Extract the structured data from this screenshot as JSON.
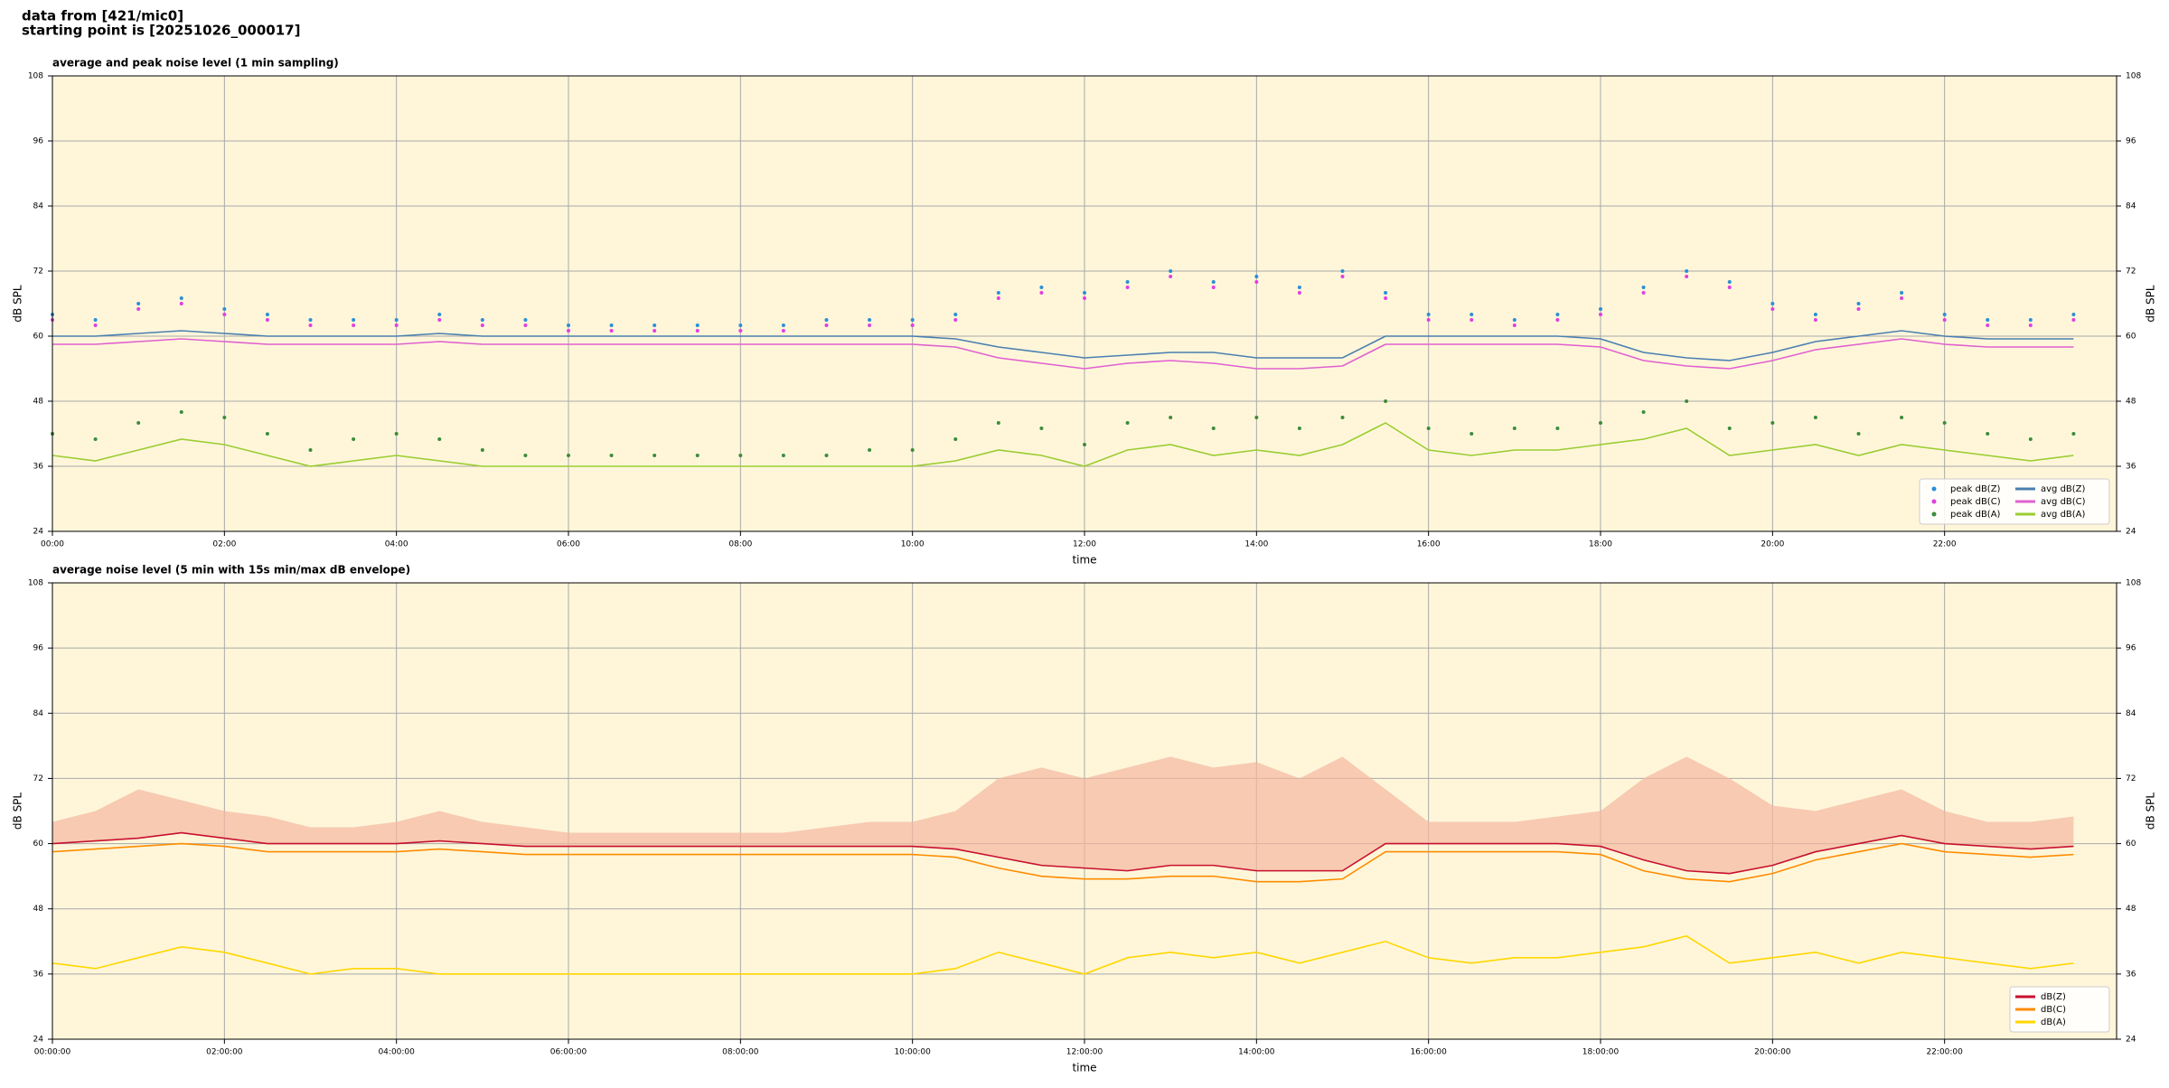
{
  "header": {
    "title": "data from [421/mic0]",
    "subtitle": "starting point is [20251026_000017]"
  },
  "chart_data": [
    {
      "type": "line",
      "title": "average and peak noise level (1 min sampling)",
      "x_label": "time",
      "y_label": "dB SPL",
      "xlim": [
        0,
        24
      ],
      "ylim": [
        24,
        108
      ],
      "yticks": [
        24,
        36,
        48,
        60,
        72,
        84,
        96,
        108
      ],
      "xticks": [
        {
          "value": 0,
          "label": "00:00"
        },
        {
          "value": 2,
          "label": "02:00"
        },
        {
          "value": 4,
          "label": "04:00"
        },
        {
          "value": 6,
          "label": "06:00"
        },
        {
          "value": 8,
          "label": "08:00"
        },
        {
          "value": 10,
          "label": "10:00"
        },
        {
          "value": 12,
          "label": "12:00"
        },
        {
          "value": 14,
          "label": "14:00"
        },
        {
          "value": 16,
          "label": "16:00"
        },
        {
          "value": 18,
          "label": "18:00"
        },
        {
          "value": 20,
          "label": "20:00"
        },
        {
          "value": 22,
          "label": "22:00"
        }
      ],
      "grid": true,
      "legend": "lower right",
      "legend_columns": 2,
      "x": [
        0,
        0.5,
        1,
        1.5,
        2,
        2.5,
        3,
        3.5,
        4,
        4.5,
        5,
        5.5,
        6,
        6.5,
        7,
        7.5,
        8,
        8.5,
        9,
        9.5,
        10,
        10.5,
        11,
        11.5,
        12,
        12.5,
        13,
        13.5,
        14,
        14.5,
        15,
        15.5,
        16,
        16.5,
        17,
        17.5,
        18,
        18.5,
        19,
        19.5,
        20,
        20.5,
        21,
        21.5,
        22,
        22.5,
        23,
        23.5
      ],
      "series": [
        {
          "name": "peak dB(Z)",
          "kind": "scatter",
          "color": "#2a8fd6",
          "values": [
            64,
            63,
            66,
            67,
            65,
            64,
            63,
            63,
            63,
            64,
            63,
            63,
            62,
            62,
            62,
            62,
            62,
            62,
            63,
            63,
            63,
            64,
            68,
            69,
            68,
            70,
            72,
            70,
            71,
            69,
            72,
            68,
            64,
            64,
            63,
            64,
            65,
            69,
            72,
            70,
            66,
            64,
            66,
            68,
            64,
            63,
            63,
            64
          ]
        },
        {
          "name": "peak dB(C)",
          "kind": "scatter",
          "color": "#e23ee2",
          "values": [
            63,
            62,
            65,
            66,
            64,
            63,
            62,
            62,
            62,
            63,
            62,
            62,
            61,
            61,
            61,
            61,
            61,
            61,
            62,
            62,
            62,
            63,
            67,
            68,
            67,
            69,
            71,
            69,
            70,
            68,
            71,
            67,
            63,
            63,
            62,
            63,
            64,
            68,
            71,
            69,
            65,
            63,
            65,
            67,
            63,
            62,
            62,
            63
          ]
        },
        {
          "name": "peak dB(A)",
          "kind": "scatter",
          "color": "#3c8c3c",
          "values": [
            42,
            41,
            44,
            46,
            45,
            42,
            39,
            41,
            42,
            41,
            39,
            38,
            38,
            38,
            38,
            38,
            38,
            38,
            38,
            39,
            39,
            41,
            44,
            43,
            40,
            44,
            45,
            43,
            45,
            43,
            45,
            48,
            43,
            42,
            43,
            43,
            44,
            46,
            48,
            43,
            44,
            45,
            42,
            45,
            44,
            42,
            41,
            42
          ]
        },
        {
          "name": "avg dB(Z)",
          "kind": "line",
          "color": "#4a7fb0",
          "values": [
            60,
            60,
            60.5,
            61,
            60.5,
            60,
            60,
            60,
            60,
            60.5,
            60,
            60,
            60,
            60,
            60,
            60,
            60,
            60,
            60,
            60,
            60,
            59.5,
            58,
            57,
            56,
            56.5,
            57,
            57,
            56,
            56,
            56,
            60,
            60,
            60,
            60,
            60,
            59.5,
            57,
            56,
            55.5,
            57,
            59,
            60,
            61,
            60,
            59.5,
            59.5,
            59.5
          ]
        },
        {
          "name": "avg dB(C)",
          "kind": "line",
          "color": "#e060d0",
          "values": [
            58.5,
            58.5,
            59,
            59.5,
            59,
            58.5,
            58.5,
            58.5,
            58.5,
            59,
            58.5,
            58.5,
            58.5,
            58.5,
            58.5,
            58.5,
            58.5,
            58.5,
            58.5,
            58.5,
            58.5,
            58,
            56,
            55,
            54,
            55,
            55.5,
            55,
            54,
            54,
            54.5,
            58.5,
            58.5,
            58.5,
            58.5,
            58.5,
            58,
            55.5,
            54.5,
            54,
            55.5,
            57.5,
            58.5,
            59.5,
            58.5,
            58,
            58,
            58
          ]
        },
        {
          "name": "avg dB(A)",
          "kind": "line",
          "color": "#9acd32",
          "values": [
            38,
            37,
            39,
            41,
            40,
            38,
            36,
            37,
            38,
            37,
            36,
            36,
            36,
            36,
            36,
            36,
            36,
            36,
            36,
            36,
            36,
            37,
            39,
            38,
            36,
            39,
            40,
            38,
            39,
            38,
            40,
            44,
            39,
            38,
            39,
            39,
            40,
            41,
            43,
            38,
            39,
            40,
            38,
            40,
            39,
            38,
            37,
            38
          ]
        }
      ]
    },
    {
      "type": "line",
      "title": "average noise level (5 min with 15s min/max dB envelope)",
      "x_label": "time",
      "y_label": "dB SPL",
      "xlim": [
        0,
        24
      ],
      "ylim": [
        24,
        108
      ],
      "yticks": [
        24,
        36,
        48,
        60,
        72,
        84,
        96,
        108
      ],
      "xticks": [
        {
          "value": 0,
          "label": "00:00:00"
        },
        {
          "value": 2,
          "label": "02:00:00"
        },
        {
          "value": 4,
          "label": "04:00:00"
        },
        {
          "value": 6,
          "label": "06:00:00"
        },
        {
          "value": 8,
          "label": "08:00:00"
        },
        {
          "value": 10,
          "label": "10:00:00"
        },
        {
          "value": 12,
          "label": "12:00:00"
        },
        {
          "value": 14,
          "label": "14:00:00"
        },
        {
          "value": 16,
          "label": "16:00:00"
        },
        {
          "value": 18,
          "label": "18:00:00"
        },
        {
          "value": 20,
          "label": "20:00:00"
        },
        {
          "value": 22,
          "label": "22:00:00"
        }
      ],
      "grid": true,
      "legend": "lower right",
      "legend_columns": 1,
      "envelope_color": "#f4b8a0",
      "x": [
        0,
        0.5,
        1,
        1.5,
        2,
        2.5,
        3,
        3.5,
        4,
        4.5,
        5,
        5.5,
        6,
        6.5,
        7,
        7.5,
        8,
        8.5,
        9,
        9.5,
        10,
        10.5,
        11,
        11.5,
        12,
        12.5,
        13,
        13.5,
        14,
        14.5,
        15,
        15.5,
        16,
        16.5,
        17,
        17.5,
        18,
        18.5,
        19,
        19.5,
        20,
        20.5,
        21,
        21.5,
        22,
        22.5,
        23,
        23.5
      ],
      "series": [
        {
          "name": "dB(Z)",
          "kind": "line",
          "color": "#c8102e",
          "values": [
            60,
            60.5,
            61,
            62,
            61,
            60,
            60,
            60,
            60,
            60.5,
            60,
            59.5,
            59.5,
            59.5,
            59.5,
            59.5,
            59.5,
            59.5,
            59.5,
            59.5,
            59.5,
            59,
            57.5,
            56,
            55.5,
            55,
            56,
            56,
            55,
            55,
            55,
            60,
            60,
            60,
            60,
            60,
            59.5,
            57,
            55,
            54.5,
            56,
            58.5,
            60,
            61.5,
            60,
            59.5,
            59,
            59.5
          ],
          "max": [
            64,
            66,
            70,
            68,
            66,
            65,
            63,
            63,
            64,
            66,
            64,
            63,
            62,
            62,
            62,
            62,
            62,
            62,
            63,
            64,
            64,
            66,
            72,
            74,
            72,
            74,
            76,
            74,
            75,
            72,
            76,
            70,
            64,
            64,
            64,
            65,
            66,
            72,
            76,
            72,
            67,
            66,
            68,
            70,
            66,
            64,
            64,
            65
          ]
        },
        {
          "name": "dB(C)",
          "kind": "line",
          "color": "#ff8c00",
          "values": [
            58.5,
            59,
            59.5,
            60,
            59.5,
            58.5,
            58.5,
            58.5,
            58.5,
            59,
            58.5,
            58,
            58,
            58,
            58,
            58,
            58,
            58,
            58,
            58,
            58,
            57.5,
            55.5,
            54,
            53.5,
            53.5,
            54,
            54,
            53,
            53,
            53.5,
            58.5,
            58.5,
            58.5,
            58.5,
            58.5,
            58,
            55,
            53.5,
            53,
            54.5,
            57,
            58.5,
            60,
            58.5,
            58,
            57.5,
            58
          ]
        },
        {
          "name": "dB(A)",
          "kind": "line",
          "color": "#ffd700",
          "values": [
            38,
            37,
            39,
            41,
            40,
            38,
            36,
            37,
            37,
            36,
            36,
            36,
            36,
            36,
            36,
            36,
            36,
            36,
            36,
            36,
            36,
            37,
            40,
            38,
            36,
            39,
            40,
            39,
            40,
            38,
            40,
            42,
            39,
            38,
            39,
            39,
            40,
            41,
            43,
            38,
            39,
            40,
            38,
            40,
            39,
            38,
            37,
            38
          ]
        }
      ]
    }
  ]
}
